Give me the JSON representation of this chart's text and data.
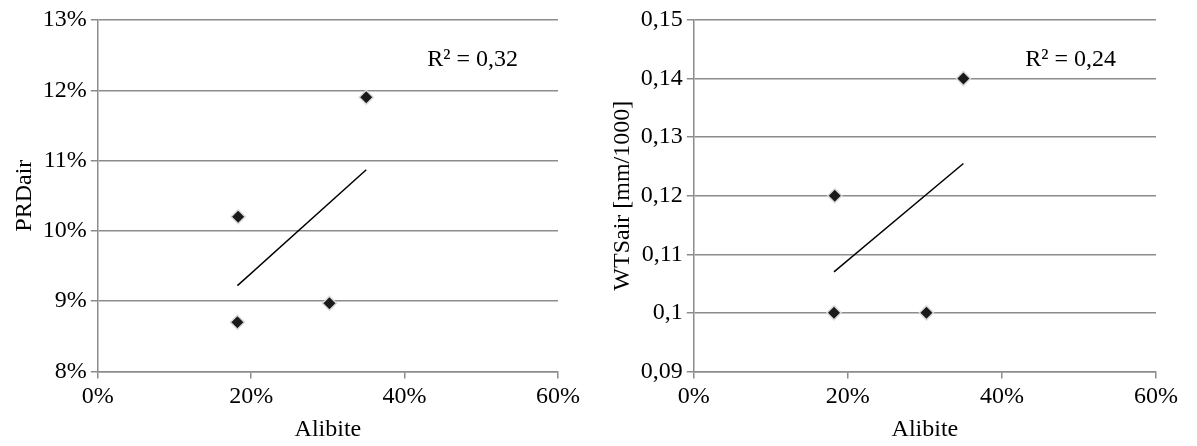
{
  "chart_data": [
    {
      "type": "scatter",
      "xlabel": "Alibite",
      "ylabel": "PRDair",
      "annotations": [
        "R² = 0,32"
      ],
      "xlim": [
        0,
        60
      ],
      "xticks": [
        {
          "value": 0,
          "label": "0%"
        },
        {
          "value": 20,
          "label": "20%"
        },
        {
          "value": 40,
          "label": "40%"
        },
        {
          "value": 60,
          "label": "60%"
        }
      ],
      "ylim": [
        8,
        13
      ],
      "yticks": [
        {
          "value": 8,
          "label": "8%"
        },
        {
          "value": 9,
          "label": "9%"
        },
        {
          "value": 10,
          "label": "10%"
        },
        {
          "value": 11,
          "label": "11%"
        },
        {
          "value": 12,
          "label": "12%"
        },
        {
          "value": 13,
          "label": "13%"
        }
      ],
      "grid": "y",
      "legend": false,
      "series": [
        {
          "marker": "diamond",
          "color": "#1a1a1a",
          "x": [
            18.2,
            18.3,
            30.2,
            35
          ],
          "values": [
            8.7,
            10.2,
            8.97,
            11.9
          ]
        },
        {
          "type": "line",
          "color": "#000000",
          "x": [
            18.2,
            35
          ],
          "values": [
            9.22,
            10.87
          ]
        }
      ]
    },
    {
      "type": "scatter",
      "xlabel": "Alibite",
      "ylabel": "WTSair [mm/1000]",
      "annotations": [
        "R² = 0,24"
      ],
      "xlim": [
        0,
        60
      ],
      "xticks": [
        {
          "value": 0,
          "label": "0%"
        },
        {
          "value": 20,
          "label": "20%"
        },
        {
          "value": 40,
          "label": "40%"
        },
        {
          "value": 60,
          "label": "60%"
        }
      ],
      "ylim": [
        0.09,
        0.15
      ],
      "yticks": [
        {
          "value": 0.09,
          "label": "0,09"
        },
        {
          "value": 0.1,
          "label": "0,1"
        },
        {
          "value": 0.11,
          "label": "0,11"
        },
        {
          "value": 0.12,
          "label": "0,12"
        },
        {
          "value": 0.13,
          "label": "0,13"
        },
        {
          "value": 0.14,
          "label": "0,14"
        },
        {
          "value": 0.15,
          "label": "0,15"
        }
      ],
      "grid": "y",
      "legend": false,
      "series": [
        {
          "marker": "diamond",
          "color": "#1a1a1a",
          "x": [
            18.2,
            18.3,
            30.2,
            35
          ],
          "values": [
            0.1,
            0.12,
            0.1,
            0.14
          ]
        },
        {
          "type": "line",
          "color": "#000000",
          "x": [
            18.2,
            35
          ],
          "values": [
            0.107,
            0.1255
          ]
        }
      ]
    }
  ]
}
